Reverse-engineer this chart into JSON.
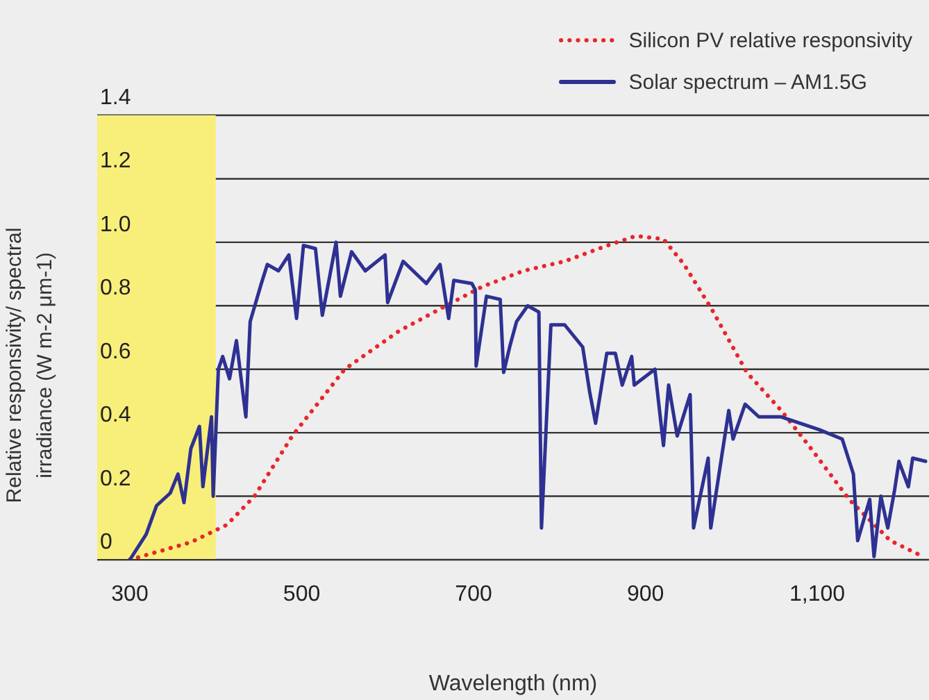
{
  "chart_data": {
    "type": "line",
    "xlabel": "Wavelength (nm)",
    "ylabel": "Relative responsivity/ spectral irradiance (W m-2 μm-1)",
    "xlim": [
      262,
      1230
    ],
    "ylim": [
      0,
      1.4
    ],
    "xticks": [
      300,
      500,
      700,
      900,
      {
        "value": 1100,
        "label": "1,100"
      }
    ],
    "yticks": [
      0,
      0.2,
      0.4,
      0.6,
      0.8,
      {
        "value": 1,
        "label": "1.0"
      },
      1.2,
      1.4
    ],
    "grid": "y",
    "legend": "top right",
    "bands": [
      {
        "axis": "x",
        "from": 262,
        "to": 400,
        "color": "#f8ef7a"
      }
    ],
    "series": [
      {
        "name": "Silicon PV relative responsivity",
        "color": "#e8262a",
        "line_style": "dotted",
        "x": [
          300,
          371,
          413,
          445,
          489,
          550,
          613,
          661,
          710,
          758,
          806,
          856,
          889,
          921,
          945,
          977,
          1018,
          1058,
          1090,
          1137,
          1185,
          1223
        ],
        "values": [
          0,
          0.055,
          0.11,
          0.2,
          0.39,
          0.6,
          0.72,
          0.79,
          0.86,
          0.91,
          0.94,
          0.99,
          1.02,
          1.01,
          0.93,
          0.79,
          0.59,
          0.47,
          0.36,
          0.19,
          0.06,
          0.01
        ]
      },
      {
        "name": "Solar spectrum – AM1.5G",
        "color": "#2e3192",
        "line_style": "solid",
        "x": [
          300,
          319,
          331,
          347,
          356,
          363,
          371,
          381,
          385,
          395,
          397,
          403,
          408,
          416,
          424,
          435,
          440,
          453,
          460,
          473,
          485,
          494,
          502,
          516,
          524,
          540,
          545,
          558,
          574,
          597,
          600,
          618,
          645,
          661,
          671,
          677,
          698,
          702,
          703,
          715,
          731,
          735,
          742,
          750,
          763,
          776,
          779,
          790,
          806,
          827,
          835,
          842,
          855,
          865,
          873,
          884,
          887,
          911,
          921,
          927,
          937,
          952,
          956,
          973,
          976,
          989,
          997,
          1002,
          1016,
          1032,
          1058,
          1102,
          1129,
          1142,
          1147,
          1161,
          1166,
          1174,
          1182,
          1190,
          1195,
          1206,
          1211,
          1226
        ],
        "values": [
          0,
          0.08,
          0.17,
          0.21,
          0.27,
          0.18,
          0.35,
          0.42,
          0.23,
          0.45,
          0.2,
          0.6,
          0.64,
          0.57,
          0.69,
          0.45,
          0.75,
          0.87,
          0.93,
          0.91,
          0.96,
          0.76,
          0.99,
          0.98,
          0.77,
          1.0,
          0.83,
          0.97,
          0.91,
          0.96,
          0.81,
          0.94,
          0.87,
          0.93,
          0.76,
          0.88,
          0.87,
          0.85,
          0.61,
          0.83,
          0.82,
          0.59,
          0.67,
          0.75,
          0.8,
          0.78,
          0.1,
          0.74,
          0.74,
          0.67,
          0.53,
          0.43,
          0.65,
          0.65,
          0.55,
          0.64,
          0.55,
          0.6,
          0.36,
          0.55,
          0.39,
          0.52,
          0.1,
          0.32,
          0.1,
          0.33,
          0.47,
          0.38,
          0.49,
          0.45,
          0.45,
          0.41,
          0.38,
          0.27,
          0.06,
          0.19,
          0.01,
          0.2,
          0.1,
          0.22,
          0.31,
          0.23,
          0.32,
          0.31
        ]
      }
    ]
  }
}
